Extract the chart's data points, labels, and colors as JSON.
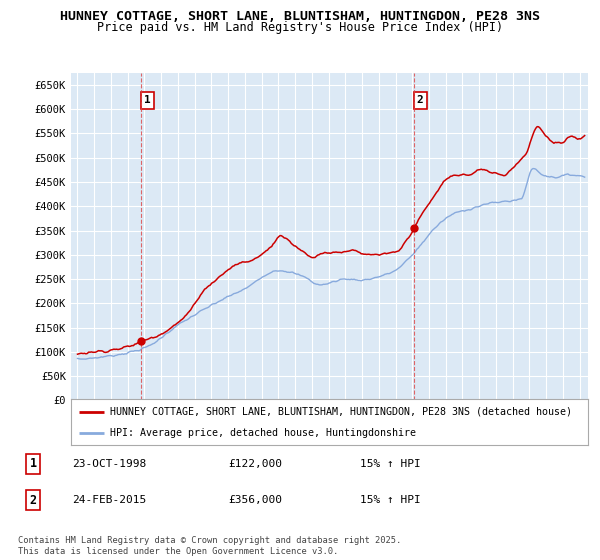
{
  "title1": "HUNNEY COTTAGE, SHORT LANE, BLUNTISHAM, HUNTINGDON, PE28 3NS",
  "title2": "Price paid vs. HM Land Registry's House Price Index (HPI)",
  "background_color": "#ffffff",
  "plot_bg_color": "#dce9f5",
  "grid_color": "#ffffff",
  "red_line_color": "#cc0000",
  "blue_line_color": "#88aadd",
  "purchase1_x": 1998.82,
  "purchase1_y": 122000,
  "purchase2_x": 2015.12,
  "purchase2_y": 356000,
  "ylim": [
    0,
    675000
  ],
  "xlim_start": 1994.6,
  "xlim_end": 2025.5,
  "legend_label_red": "HUNNEY COTTAGE, SHORT LANE, BLUNTISHAM, HUNTINGDON, PE28 3NS (detached house)",
  "legend_label_blue": "HPI: Average price, detached house, Huntingdonshire",
  "footer": "Contains HM Land Registry data © Crown copyright and database right 2025.\nThis data is licensed under the Open Government Licence v3.0.",
  "ytick_labels": [
    "£0",
    "£50K",
    "£100K",
    "£150K",
    "£200K",
    "£250K",
    "£300K",
    "£350K",
    "£400K",
    "£450K",
    "£500K",
    "£550K",
    "£600K",
    "£650K"
  ],
  "ytick_values": [
    0,
    50000,
    100000,
    150000,
    200000,
    250000,
    300000,
    350000,
    400000,
    450000,
    500000,
    550000,
    600000,
    650000
  ]
}
